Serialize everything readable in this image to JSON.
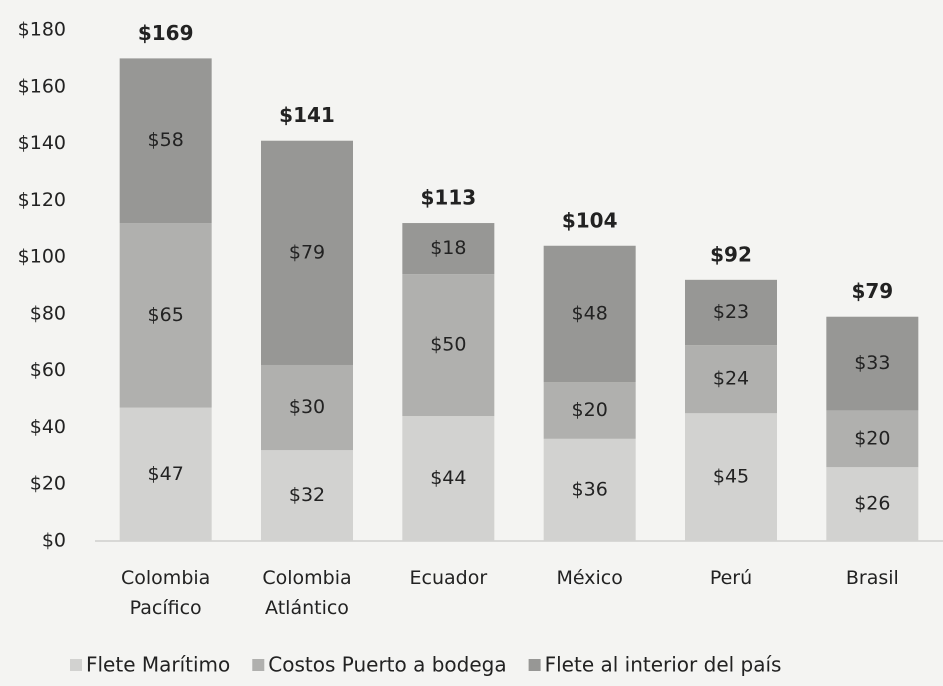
{
  "chart_data": {
    "type": "stacked_bar",
    "categories": [
      "Colombia Pacífico",
      "Colombia Atlántico",
      "Ecuador",
      "México",
      "Perú",
      "Brasil"
    ],
    "series": [
      {
        "name": "Flete Marítimo",
        "color": "#d2d2d0",
        "values": [
          47,
          32,
          44,
          36,
          45,
          26
        ],
        "value_labels": [
          "$47",
          "$32",
          "$44",
          "$36",
          "$45",
          "$26"
        ]
      },
      {
        "name": "Costos Puerto a bodega",
        "color": "#b0b0ae",
        "values": [
          65,
          30,
          50,
          20,
          24,
          20
        ],
        "value_labels": [
          "$65",
          "$30",
          "$50",
          "$20",
          "$24",
          "$20"
        ]
      },
      {
        "name": "Flete al interior del país",
        "color": "#979795",
        "values": [
          58,
          79,
          18,
          48,
          23,
          33
        ],
        "value_labels": [
          "$58",
          "$79",
          "$18",
          "$48",
          "$23",
          "$33"
        ]
      }
    ],
    "totals": [
      169,
      141,
      113,
      104,
      92,
      79
    ],
    "totals_labels": [
      "$169",
      "$141",
      "$113",
      "$104",
      "$92",
      "$79"
    ],
    "ylim": [
      0,
      180
    ],
    "yticks": [
      {
        "value": 0,
        "label": "$0"
      },
      {
        "value": 20,
        "label": "$20"
      },
      {
        "value": 40,
        "label": "$40"
      },
      {
        "value": 60,
        "label": "$60"
      },
      {
        "value": 80,
        "label": "$80"
      },
      {
        "value": 100,
        "label": "$100"
      },
      {
        "value": 120,
        "label": "$120"
      },
      {
        "value": 140,
        "label": "$140"
      },
      {
        "value": 160,
        "label": "$160"
      },
      {
        "value": 180,
        "label": "$180"
      }
    ],
    "legend": "bottom"
  }
}
